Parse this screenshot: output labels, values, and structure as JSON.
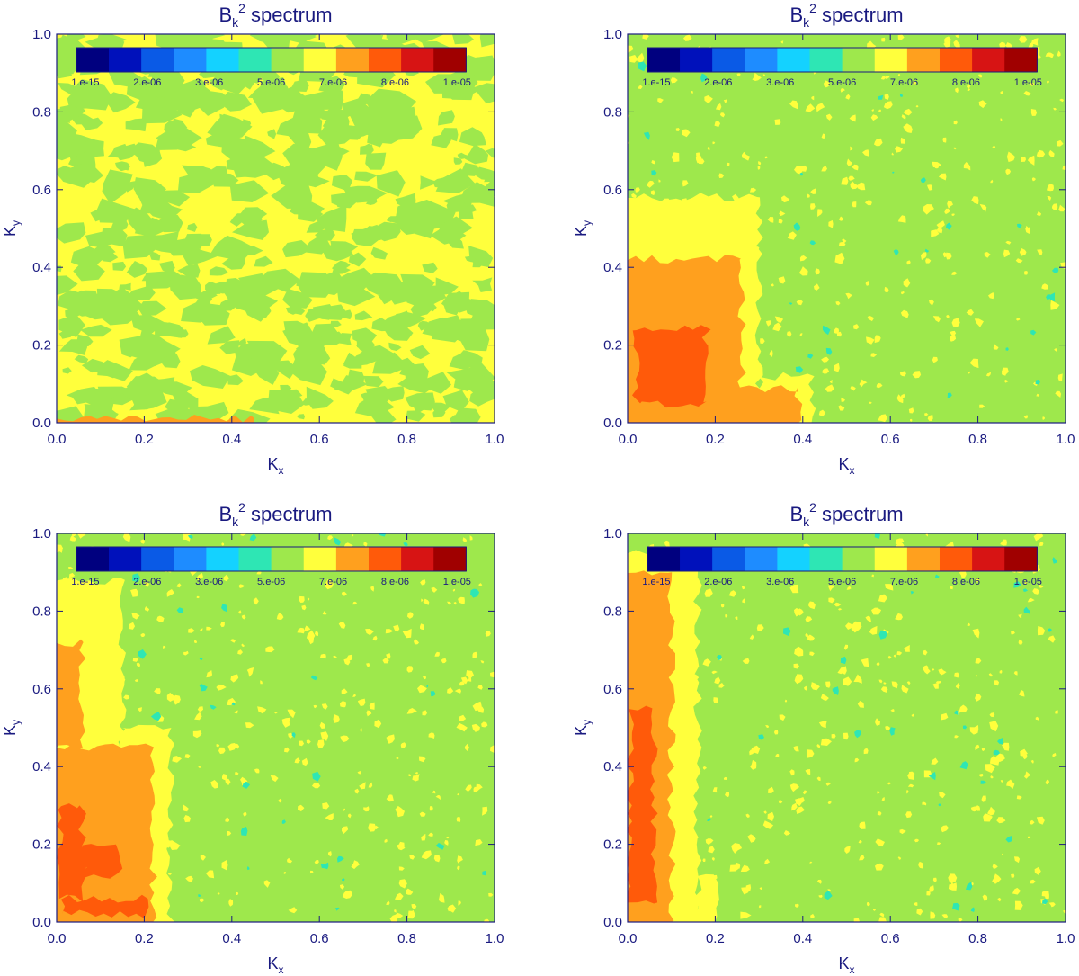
{
  "palette": [
    "#00007f",
    "#0011bb",
    "#0a5ae6",
    "#1e8cff",
    "#14d2ff",
    "#2ee6b4",
    "#9ee84c",
    "#ffff3c",
    "#ffa01e",
    "#ff5a0a",
    "#d71414",
    "#a00000"
  ],
  "chart_data": [
    {
      "type": "heatmap",
      "title_base": "B",
      "title_sub": "k",
      "title_sup": "2",
      "title_rest": " spectrum",
      "xlabel_base": "K",
      "xlabel_sub": "x",
      "ylabel_base": "K",
      "ylabel_sub": "y",
      "xlim": [
        0,
        1
      ],
      "ylim": [
        0,
        1
      ],
      "xticks": [
        "0.0",
        "0.2",
        "0.4",
        "0.6",
        "0.8",
        "1.0"
      ],
      "yticks": [
        "0.0",
        "0.2",
        "0.4",
        "0.6",
        "0.8",
        "1.0"
      ],
      "colorbar": {
        "placement": "inside-top",
        "levels": 12,
        "tick_labels": [
          "1.e-15",
          "2.e-06",
          "3.e-06",
          "5.e-06",
          "7.e-06",
          "8.e-06",
          "1.e-05"
        ]
      },
      "background_level": 7,
      "speckle_levels": [
        6
      ],
      "regions": [
        {
          "level": 8,
          "x0": 0.0,
          "x1": 0.45,
          "y0": 0.0,
          "y1": 0.012
        }
      ]
    },
    {
      "type": "heatmap",
      "title_base": "B",
      "title_sub": "k",
      "title_sup": "2",
      "title_rest": " spectrum",
      "xlabel_base": "K",
      "xlabel_sub": "x",
      "ylabel_base": "K",
      "ylabel_sub": "y",
      "xlim": [
        0,
        1
      ],
      "ylim": [
        0,
        1
      ],
      "xticks": [
        "0.0",
        "0.2",
        "0.4",
        "0.6",
        "0.8",
        "1.0"
      ],
      "yticks": [
        "0.0",
        "0.2",
        "0.4",
        "0.6",
        "0.8",
        "1.0"
      ],
      "colorbar": {
        "placement": "inside-top",
        "levels": 12,
        "tick_labels": [
          "1.e-15",
          "2.e-06",
          "3.e-06",
          "5.e-06",
          "7.e-06",
          "8.e-06",
          "1.e-05"
        ]
      },
      "background_level": 6,
      "speckle_levels": [
        7,
        5
      ],
      "regions": [
        {
          "level": 7,
          "x0": 0.0,
          "x1": 0.3,
          "y0": 0.0,
          "y1": 0.58
        },
        {
          "level": 7,
          "x0": 0.3,
          "x1": 0.42,
          "y0": 0.0,
          "y1": 0.12
        },
        {
          "level": 8,
          "x0": 0.0,
          "x1": 0.39,
          "y0": 0.0,
          "y1": 0.09
        },
        {
          "level": 8,
          "x0": 0.0,
          "x1": 0.26,
          "y0": 0.0,
          "y1": 0.42
        },
        {
          "level": 9,
          "x0": 0.02,
          "x1": 0.18,
          "y0": 0.05,
          "y1": 0.24
        }
      ]
    },
    {
      "type": "heatmap",
      "title_base": "B",
      "title_sub": "k",
      "title_sup": "2",
      "title_rest": " spectrum",
      "xlabel_base": "K",
      "xlabel_sub": "x",
      "ylabel_base": "K",
      "ylabel_sub": "y",
      "xlim": [
        0,
        1
      ],
      "ylim": [
        0,
        1
      ],
      "xticks": [
        "0.0",
        "0.2",
        "0.4",
        "0.6",
        "0.8",
        "1.0"
      ],
      "yticks": [
        "0.0",
        "0.2",
        "0.4",
        "0.6",
        "0.8",
        "1.0"
      ],
      "colorbar": {
        "placement": "inside-top",
        "levels": 12,
        "tick_labels": [
          "1.e-15",
          "2.e-06",
          "3.e-06",
          "5.e-06",
          "7.e-06",
          "8.e-06",
          "1.e-05"
        ]
      },
      "background_level": 6,
      "speckle_levels": [
        7,
        5
      ],
      "regions": [
        {
          "level": 7,
          "x0": 0.0,
          "x1": 0.15,
          "y0": 0.0,
          "y1": 0.88
        },
        {
          "level": 7,
          "x0": 0.15,
          "x1": 0.26,
          "y0": 0.0,
          "y1": 0.5
        },
        {
          "level": 8,
          "x0": 0.0,
          "x1": 0.22,
          "y0": 0.0,
          "y1": 0.45
        },
        {
          "level": 8,
          "x0": 0.0,
          "x1": 0.06,
          "y0": 0.45,
          "y1": 0.72
        },
        {
          "level": 9,
          "x0": 0.01,
          "x1": 0.2,
          "y0": 0.02,
          "y1": 0.06
        },
        {
          "level": 9,
          "x0": 0.01,
          "x1": 0.06,
          "y0": 0.06,
          "y1": 0.3
        },
        {
          "level": 9,
          "x0": 0.06,
          "x1": 0.14,
          "y0": 0.12,
          "y1": 0.2
        }
      ]
    },
    {
      "type": "heatmap",
      "title_base": "B",
      "title_sub": "k",
      "title_sup": "2",
      "title_rest": " spectrum",
      "xlabel_base": "K",
      "xlabel_sub": "x",
      "ylabel_base": "K",
      "ylabel_sub": "y",
      "xlim": [
        0,
        1
      ],
      "ylim": [
        0,
        1
      ],
      "xticks": [
        "0.0",
        "0.2",
        "0.4",
        "0.6",
        "0.8",
        "1.0"
      ],
      "yticks": [
        "0.0",
        "0.2",
        "0.4",
        "0.6",
        "0.8",
        "1.0"
      ],
      "colorbar": {
        "placement": "inside-top",
        "levels": 12,
        "tick_labels": [
          "1.e-15",
          "2.e-06",
          "3.e-06",
          "5.e-06",
          "7.e-06",
          "8.e-06",
          "1.e-05"
        ]
      },
      "background_level": 6,
      "speckle_levels": [
        7,
        5
      ],
      "regions": [
        {
          "level": 7,
          "x0": 0.0,
          "x1": 0.16,
          "y0": 0.0,
          "y1": 0.95
        },
        {
          "level": 7,
          "x0": 0.16,
          "x1": 0.2,
          "y0": 0.0,
          "y1": 0.12
        },
        {
          "level": 8,
          "x0": 0.0,
          "x1": 0.1,
          "y0": 0.0,
          "y1": 0.9
        },
        {
          "level": 9,
          "x0": 0.005,
          "x1": 0.06,
          "y0": 0.05,
          "y1": 0.55
        }
      ]
    }
  ]
}
